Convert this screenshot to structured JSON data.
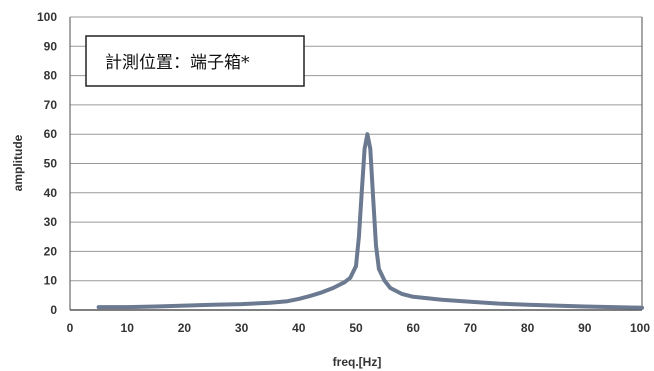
{
  "chart_data": {
    "type": "line",
    "xlabel": "freq.[Hz]",
    "ylabel": "amplitude",
    "xlim": [
      0,
      100
    ],
    "ylim": [
      0,
      100
    ],
    "x_ticks": [
      0,
      10,
      20,
      30,
      40,
      50,
      60,
      70,
      80,
      90,
      100
    ],
    "y_ticks": [
      0,
      10,
      20,
      30,
      40,
      50,
      60,
      70,
      80,
      90,
      100
    ],
    "grid": true,
    "annotation": "計測位置：端子箱*",
    "line_color": "#6b7a90",
    "series": [
      {
        "x": [
          5,
          10,
          15,
          20,
          25,
          30,
          35,
          38,
          40,
          42,
          44,
          46,
          48,
          49,
          50,
          50.5,
          51,
          51.5,
          52,
          52.5,
          53,
          53.5,
          54,
          55,
          56,
          58,
          60,
          65,
          70,
          75,
          80,
          85,
          90,
          95,
          100
        ],
        "y": [
          1,
          1,
          1.2,
          1.5,
          1.8,
          2,
          2.5,
          3,
          3.8,
          4.8,
          6,
          7.5,
          9.5,
          11,
          15,
          25,
          40,
          55,
          60,
          55,
          38,
          22,
          14,
          10,
          7.5,
          5.5,
          4.5,
          3.5,
          2.8,
          2.2,
          1.8,
          1.5,
          1.2,
          1,
          0.8
        ]
      }
    ]
  }
}
